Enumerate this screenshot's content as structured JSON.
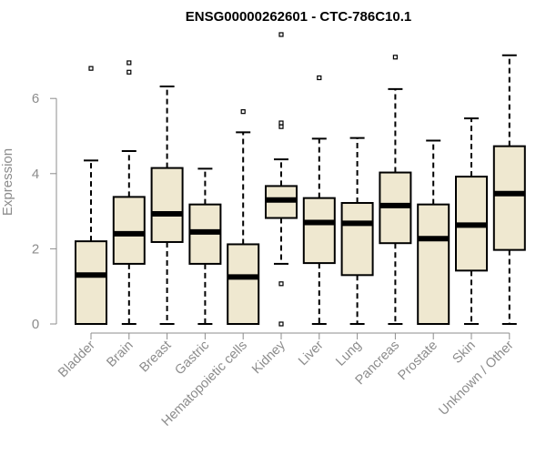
{
  "chart_data": {
    "type": "boxplot",
    "title": "ENSG00000262601 - CTC-786C10.1",
    "xlabel": "",
    "ylabel": "Expression",
    "ylim": [
      0,
      7.5
    ],
    "yticks": [
      0,
      2,
      4,
      6
    ],
    "grid": false,
    "box_color": "#efe8d0",
    "categories": [
      "Bladder",
      "Brain",
      "Breast",
      "Gastric",
      "Hematopoietic cells",
      "Kidney",
      "Liver",
      "Lung",
      "Pancreas",
      "Prostate",
      "Skin",
      "Unknown / Other"
    ],
    "boxes": [
      {
        "whisker_low": 0.0,
        "q1": 0.0,
        "median": 1.3,
        "q3": 2.2,
        "whisker_high": 4.35,
        "outliers": [
          6.8
        ]
      },
      {
        "whisker_low": 0.0,
        "q1": 1.6,
        "median": 2.4,
        "q3": 3.38,
        "whisker_high": 4.6,
        "outliers": [
          6.7,
          6.95
        ]
      },
      {
        "whisker_low": 0.0,
        "q1": 2.18,
        "median": 2.93,
        "q3": 4.15,
        "whisker_high": 6.32,
        "outliers": []
      },
      {
        "whisker_low": 0.0,
        "q1": 1.6,
        "median": 2.45,
        "q3": 3.18,
        "whisker_high": 4.13,
        "outliers": []
      },
      {
        "whisker_low": 0.0,
        "q1": 0.0,
        "median": 1.25,
        "q3": 2.12,
        "whisker_high": 5.1,
        "outliers": [
          5.65
        ]
      },
      {
        "whisker_low": 1.6,
        "q1": 2.82,
        "median": 3.3,
        "q3": 3.67,
        "whisker_high": 4.38,
        "outliers": [
          0.0,
          1.07,
          5.25,
          5.35,
          7.7
        ]
      },
      {
        "whisker_low": 0.0,
        "q1": 1.62,
        "median": 2.7,
        "q3": 3.35,
        "whisker_high": 4.93,
        "outliers": [
          6.55
        ]
      },
      {
        "whisker_low": 0.0,
        "q1": 1.3,
        "median": 2.68,
        "q3": 3.22,
        "whisker_high": 4.95,
        "outliers": []
      },
      {
        "whisker_low": 0.0,
        "q1": 2.15,
        "median": 3.15,
        "q3": 4.03,
        "whisker_high": 6.25,
        "outliers": [
          7.1
        ]
      },
      {
        "whisker_low": 0.0,
        "q1": 0.0,
        "median": 2.27,
        "q3": 3.18,
        "whisker_high": 4.88,
        "outliers": []
      },
      {
        "whisker_low": 0.0,
        "q1": 1.42,
        "median": 2.63,
        "q3": 3.92,
        "whisker_high": 5.47,
        "outliers": []
      },
      {
        "whisker_low": 0.0,
        "q1": 1.97,
        "median": 3.47,
        "q3": 4.73,
        "whisker_high": 7.15,
        "outliers": []
      }
    ]
  }
}
